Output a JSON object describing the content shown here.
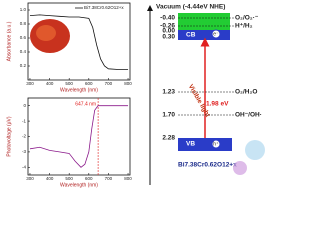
{
  "chart_data": [
    {
      "type": "line",
      "ylabel": "Absorbance (a.u.)",
      "xlabel": "Wavelength (nm)",
      "x": [
        300,
        350,
        400,
        450,
        500,
        550,
        600,
        620,
        640,
        660,
        680,
        700,
        750,
        800
      ],
      "series": [
        {
          "name": "Bi7.38Cr0.62O12+x",
          "color": "#111111",
          "values": [
            0.92,
            0.93,
            0.92,
            0.91,
            0.9,
            0.9,
            0.88,
            0.75,
            0.5,
            0.3,
            0.2,
            0.16,
            0.15,
            0.15
          ]
        }
      ],
      "xlim": [
        290,
        810
      ],
      "ylim": [
        0,
        1.1
      ],
      "xticks": [
        300,
        400,
        500,
        600,
        700,
        800
      ],
      "yticks": [
        0.2,
        0.4,
        0.6,
        0.8,
        {
          "value": 1,
          "label": "1.0"
        }
      ]
    },
    {
      "type": "line",
      "ylabel": "Photovoltage (μV)",
      "xlabel": "Wavelength (nm)",
      "x": [
        300,
        350,
        400,
        450,
        500,
        530,
        560,
        580,
        600,
        615,
        630,
        647,
        700,
        750,
        800
      ],
      "series": [
        {
          "color": "#8b1a8b",
          "values": [
            -2.8,
            -2.7,
            -2.9,
            -3.0,
            -3.1,
            -3.6,
            -4.0,
            -3.8,
            -3.0,
            -1.5,
            -0.3,
            0,
            0,
            0,
            0
          ]
        }
      ],
      "xlim": [
        290,
        810
      ],
      "ylim": [
        -4.5,
        0.5
      ],
      "xticks": [
        300,
        400,
        500,
        600,
        700,
        800
      ],
      "yticks": [
        0,
        -1,
        -2,
        -3,
        -4
      ],
      "annotation": "647.4 nm",
      "annotation_x": 647.4
    }
  ],
  "band_diagram": {
    "vacuum": "Vacuum (-4.44eV NHE)",
    "energies": [
      "-0.40",
      "-0.26",
      "0.00",
      "0.30",
      "1.23",
      "1.70",
      "2.28"
    ],
    "couples": [
      "O₂/O₂·⁻",
      "H⁺/H₂",
      "O₂/H₂O",
      "OH⁻/OH·"
    ],
    "cb": "CB",
    "vb": "VB",
    "gap": "1.98 eV",
    "light": "Visible light",
    "electron": "e⁻",
    "hole": "h⁺",
    "material": "Bi7.38Cr0.62O12+x"
  }
}
